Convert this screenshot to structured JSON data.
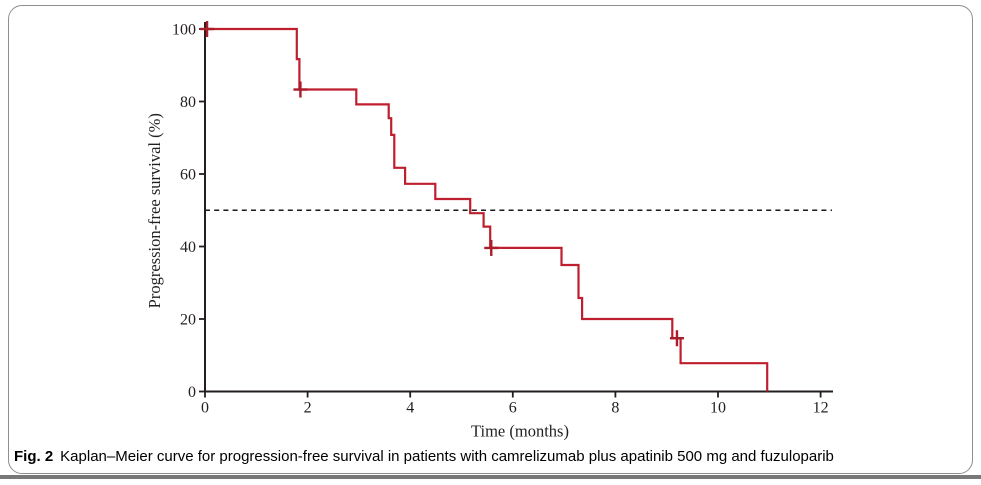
{
  "caption": {
    "label": "Fig. 2",
    "text": "Kaplan–Meier curve for progression-free survival in patients with camrelizumab plus apatinib 500 mg and fuzuloparib"
  },
  "colors": {
    "curve": "#bf1e2e",
    "censor": "#a91c2a",
    "axis": "#231f20",
    "reference_line": "#1a1a1a",
    "border": "#8f8f8f",
    "divider": "#787878",
    "background": "#ffffff"
  },
  "chart_data": {
    "type": "line",
    "variant": "kaplan-meier-step",
    "title": "",
    "xlabel": "Time (months)",
    "ylabel": "Progression-free survival (%)",
    "xlim": [
      0,
      12.25
    ],
    "ylim": [
      0,
      100
    ],
    "xticks": [
      0,
      2,
      4,
      6,
      8,
      10,
      12
    ],
    "yticks": [
      0,
      20,
      40,
      60,
      80,
      100
    ],
    "grid": false,
    "legend": "none",
    "reference_line": {
      "y": 50,
      "style": "dashed",
      "meaning": "median survival 50%"
    },
    "series": [
      {
        "name": "Progression-free survival",
        "color": "#bf1e2e",
        "steps": [
          [
            0,
            100
          ],
          [
            1.79,
            91.7
          ],
          [
            1.84,
            83.3
          ],
          [
            2.95,
            79.2
          ],
          [
            3.58,
            75.4
          ],
          [
            3.63,
            70.8
          ],
          [
            3.69,
            61.7
          ],
          [
            3.9,
            57.3
          ],
          [
            4.49,
            53.1
          ],
          [
            5.17,
            49.2
          ],
          [
            5.43,
            45.5
          ],
          [
            5.56,
            39.6
          ],
          [
            6.95,
            34.9
          ],
          [
            7.28,
            25.8
          ],
          [
            7.35,
            20.0
          ],
          [
            9.11,
            14.7
          ],
          [
            9.27,
            7.8
          ],
          [
            10.96,
            0
          ]
        ],
        "censor_marks": [
          [
            0.04,
            100
          ],
          [
            1.86,
            83.3
          ],
          [
            5.58,
            39.6
          ],
          [
            9.2,
            14.7
          ]
        ]
      }
    ]
  }
}
